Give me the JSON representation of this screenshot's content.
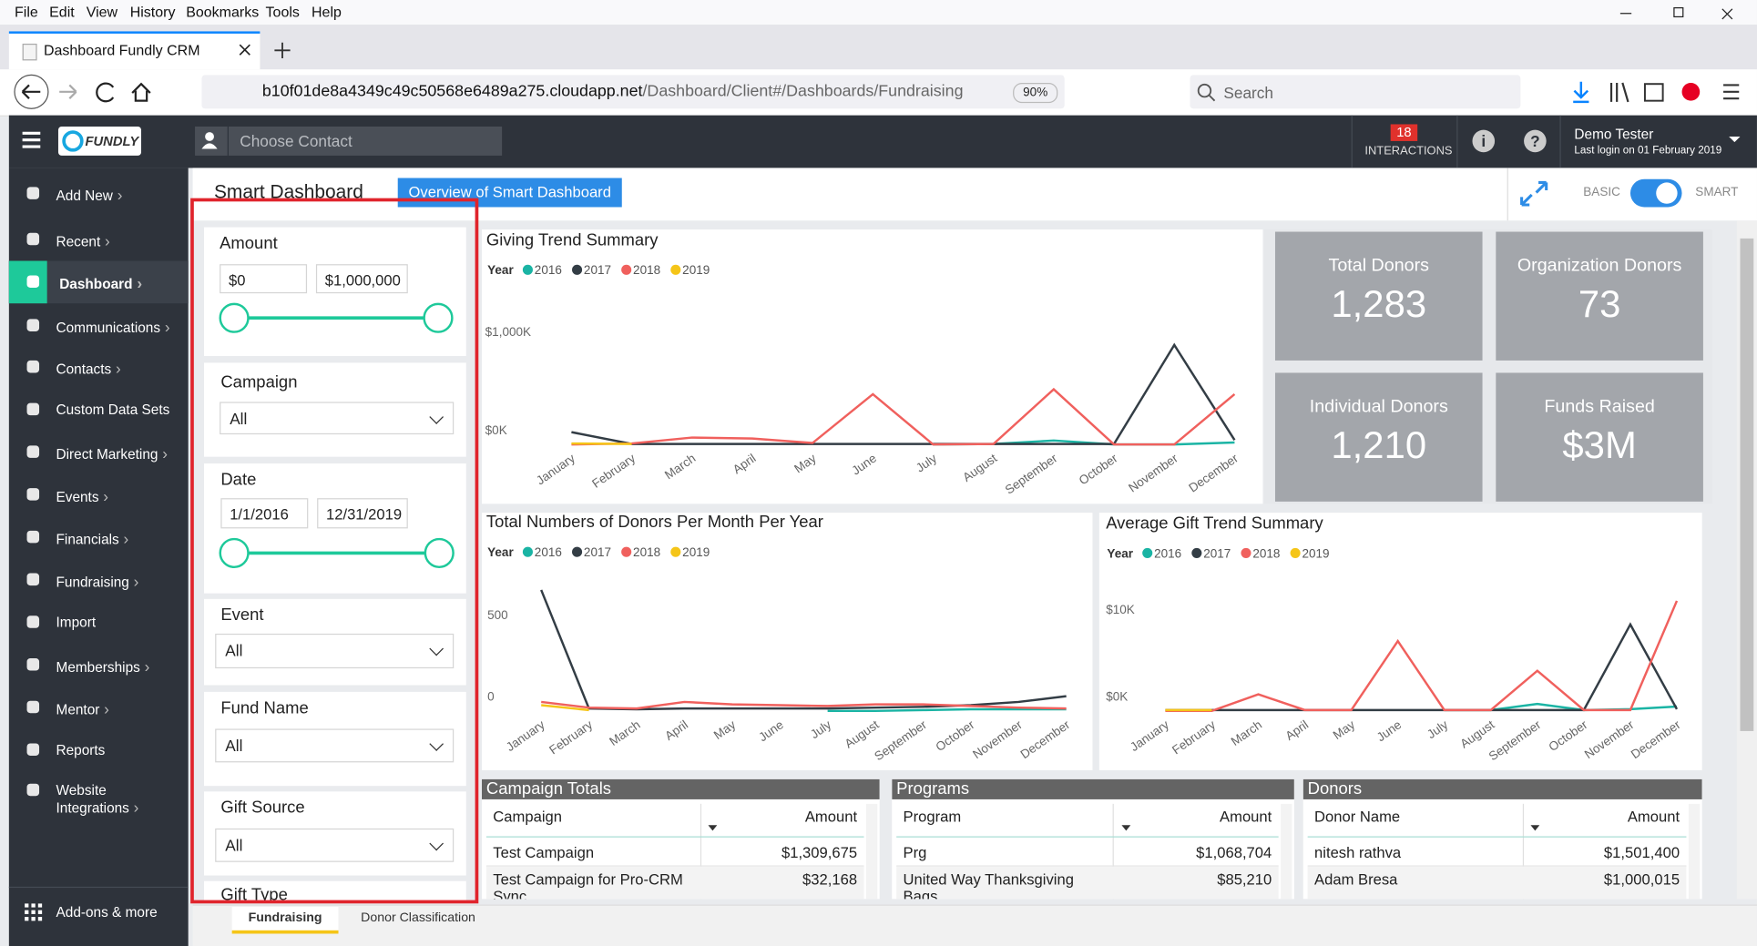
{
  "browser": {
    "menu": [
      "File",
      "Edit",
      "View",
      "History",
      "Bookmarks",
      "Tools",
      "Help"
    ],
    "tab_title": "Dashboard Fundly CRM",
    "url_host": "b10f01de8a4349c49c50568e6489a275.cloudapp.net",
    "url_path": "/Dashboard/Client#/Dashboards/Fundraising",
    "zoom": "90%",
    "search_placeholder": "Search"
  },
  "header": {
    "logo": "FUNDLY",
    "contact_placeholder": "Choose Contact",
    "interactions_count": "18",
    "interactions_label": "INTERACTIONS",
    "user_name": "Demo Tester",
    "last_login": "Last login on 01 February 2019"
  },
  "sidebar": {
    "items": [
      "Add New",
      "Recent",
      "Dashboard",
      "Communications",
      "Contacts",
      "Custom Data Sets",
      "Direct Marketing",
      "Events",
      "Financials",
      "Fundraising",
      "Import",
      "Memberships",
      "Mentor",
      "Reports",
      "Website Integrations"
    ],
    "footer": "Add-ons & more"
  },
  "dashboard": {
    "title": "Smart Dashboard",
    "overview_button": "Overview of Smart Dashboard",
    "toggle_left": "BASIC",
    "toggle_right": "SMART"
  },
  "filters": {
    "amount": {
      "label": "Amount",
      "min": "$0",
      "max": "$1,000,000"
    },
    "campaign": {
      "label": "Campaign",
      "value": "All"
    },
    "date": {
      "label": "Date",
      "start": "1/1/2016",
      "end": "12/31/2019"
    },
    "event": {
      "label": "Event",
      "value": "All"
    },
    "fund_name": {
      "label": "Fund Name",
      "value": "All"
    },
    "gift_source": {
      "label": "Gift Source",
      "value": "All"
    },
    "gift_type": {
      "label": "Gift Type"
    }
  },
  "kpis": [
    {
      "label": "Total Donors",
      "value": "1,283"
    },
    {
      "label": "Organization Donors",
      "value": "73"
    },
    {
      "label": "Individual Donors",
      "value": "1,210"
    },
    {
      "label": "Funds Raised",
      "value": "$3M"
    }
  ],
  "charts": [
    {
      "type": "line",
      "title": "Giving Trend Summary",
      "legend_title": "Year",
      "categories": [
        "January",
        "February",
        "March",
        "April",
        "May",
        "June",
        "July",
        "August",
        "September",
        "October",
        "November",
        "December"
      ],
      "ylim": [
        0,
        1100
      ],
      "yticks": [
        {
          "value": 0,
          "label": "$0K"
        },
        {
          "value": 1000,
          "label": "$1,000K"
        }
      ],
      "series": [
        {
          "name": "2016",
          "color": "#1ab4a4",
          "values": [
            null,
            null,
            null,
            null,
            null,
            null,
            0,
            5,
            40,
            0,
            0,
            20
          ]
        },
        {
          "name": "2017",
          "color": "#333d45",
          "values": [
            125,
            5,
            5,
            5,
            5,
            5,
            5,
            5,
            5,
            5,
            1010,
            45
          ]
        },
        {
          "name": "2018",
          "color": "#f0605d",
          "values": [
            0,
            10,
            70,
            60,
            15,
            510,
            0,
            5,
            560,
            0,
            0,
            510
          ]
        },
        {
          "name": "2019",
          "color": "#f5c518",
          "values": [
            10,
            5,
            null,
            null,
            null,
            null,
            null,
            null,
            null,
            null,
            null,
            null
          ]
        }
      ]
    },
    {
      "type": "line",
      "title": "Total Numbers of Donors Per Month Per Year",
      "legend_title": "Year",
      "categories": [
        "January",
        "February",
        "March",
        "April",
        "May",
        "June",
        "July",
        "August",
        "September",
        "October",
        "November",
        "December"
      ],
      "ylim": [
        0,
        800
      ],
      "yticks": [
        0,
        500
      ],
      "series": [
        {
          "name": "2016",
          "color": "#1ab4a4",
          "values": [
            null,
            null,
            null,
            null,
            null,
            null,
            0,
            0,
            5,
            10,
            10,
            10
          ]
        },
        {
          "name": "2017",
          "color": "#333d45",
          "values": [
            740,
            15,
            10,
            15,
            15,
            15,
            15,
            20,
            25,
            35,
            55,
            90
          ]
        },
        {
          "name": "2018",
          "color": "#f0605d",
          "values": [
            55,
            20,
            15,
            55,
            40,
            35,
            30,
            40,
            40,
            30,
            20,
            15
          ]
        },
        {
          "name": "2019",
          "color": "#f5c518",
          "values": [
            35,
            5,
            null,
            null,
            null,
            null,
            null,
            null,
            null,
            null,
            null,
            null
          ]
        }
      ]
    },
    {
      "type": "line",
      "title": "Average Gift Trend Summary",
      "legend_title": "Year",
      "categories": [
        "January",
        "February",
        "March",
        "April",
        "May",
        "June",
        "July",
        "August",
        "September",
        "October",
        "November",
        "December"
      ],
      "ylim": [
        0,
        13
      ],
      "yticks": [
        {
          "value": 0,
          "label": "$0K"
        },
        {
          "value": 10,
          "label": "$10K"
        }
      ],
      "series": [
        {
          "name": "2016",
          "color": "#1ab4a4",
          "values": [
            null,
            null,
            null,
            null,
            null,
            null,
            0.1,
            0.1,
            0.8,
            0.1,
            0.2,
            0.5
          ]
        },
        {
          "name": "2017",
          "color": "#333d45",
          "values": [
            0.1,
            0.1,
            0.1,
            0.1,
            0.1,
            0.1,
            0.1,
            0.1,
            0.1,
            0.1,
            9.9,
            0.2
          ]
        },
        {
          "name": "2018",
          "color": "#f0605d",
          "values": [
            0,
            0,
            1.9,
            0.1,
            0.1,
            8,
            0.1,
            0.1,
            4.6,
            0.1,
            0.1,
            12.6
          ]
        },
        {
          "name": "2019",
          "color": "#f5c518",
          "values": [
            0.1,
            0.1,
            null,
            null,
            null,
            null,
            null,
            null,
            null,
            null,
            null,
            null
          ]
        }
      ]
    }
  ],
  "tables": [
    {
      "title": "Campaign Totals",
      "columns": [
        "Campaign",
        "Amount"
      ],
      "rows": [
        [
          "Test Campaign",
          "$1,309,675"
        ],
        [
          "Test Campaign for Pro-CRM Sync",
          "$32,168"
        ]
      ]
    },
    {
      "title": "Programs",
      "columns": [
        "Program",
        "Amount"
      ],
      "rows": [
        [
          "Prg",
          "$1,068,704"
        ],
        [
          "United Way Thanksgiving Bags",
          "$85,210"
        ]
      ]
    },
    {
      "title": "Donors",
      "columns": [
        "Donor Name",
        "Amount"
      ],
      "rows": [
        [
          "nitesh rathva",
          "$1,501,400"
        ],
        [
          "Adam Bresa",
          "$1,000,015"
        ]
      ]
    }
  ],
  "bottom_tabs": [
    "Fundraising",
    "Donor Classification"
  ]
}
